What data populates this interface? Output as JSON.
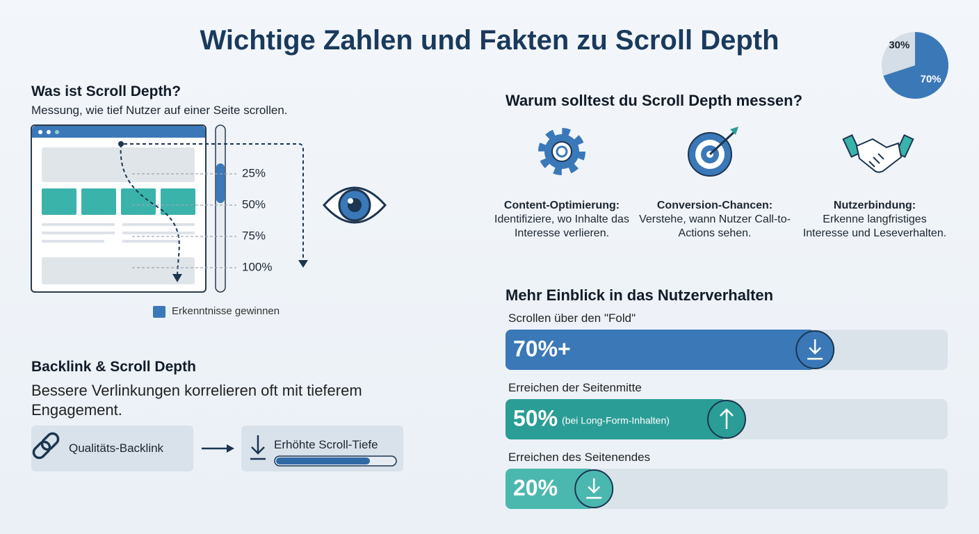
{
  "title": "Wichtige Zahlen und Fakten zu Scroll Depth",
  "what": {
    "heading": "Was ist Scroll Depth?",
    "text": "Messung, wie tief Nutzer auf einer Seite scrollen.",
    "markers": [
      {
        "value": 25,
        "label": "25%"
      },
      {
        "value": 50,
        "label": "50%"
      },
      {
        "value": 75,
        "label": "75%"
      },
      {
        "value": 100,
        "label": "100%"
      }
    ],
    "legend": "Erkenntnisse gewinnen"
  },
  "backlink": {
    "heading": "Backlink & Scroll Depth",
    "text": "Bessere Verlinkungen korrelieren oft mit tieferem Engagement.",
    "source": "Qualitäts-Backlink",
    "result": "Erhöhte Scroll-Tiefe"
  },
  "pie": {
    "values": [
      70,
      30
    ],
    "labels": [
      "70%",
      "30%"
    ],
    "colors": [
      "#3a78b8",
      "#d5dde6"
    ]
  },
  "why": {
    "heading": "Warum solltest du Scroll Depth messen?",
    "items": [
      {
        "title": "Content-Optimierung:",
        "text": "Identifiziere, wo Inhalte das Interesse verlieren."
      },
      {
        "title": "Conversion-Chancen:",
        "text": "Verstehe, wann Nutzer Call-to-Actions sehen."
      },
      {
        "title": "Nutzerbindung:",
        "text": "Erkenne langfristiges Interesse und Leseverhalten."
      }
    ]
  },
  "insight": {
    "heading": "Mehr Einblick in das Nutzerverhalten",
    "bars": [
      {
        "label": "Scrollen über den \"Fold\"",
        "value": 70,
        "value_label": "70%+",
        "color": "#3a78b8"
      },
      {
        "label": "Erreichen der Seitenmitte",
        "value": 50,
        "value_label": "50%",
        "note": "(bei Long-Form-Inhalten)",
        "color": "#2a9d96"
      },
      {
        "label": "Erreichen des Seitenendes",
        "value": 20,
        "value_label": "20%",
        "color": "#4bb8b0"
      }
    ]
  }
}
